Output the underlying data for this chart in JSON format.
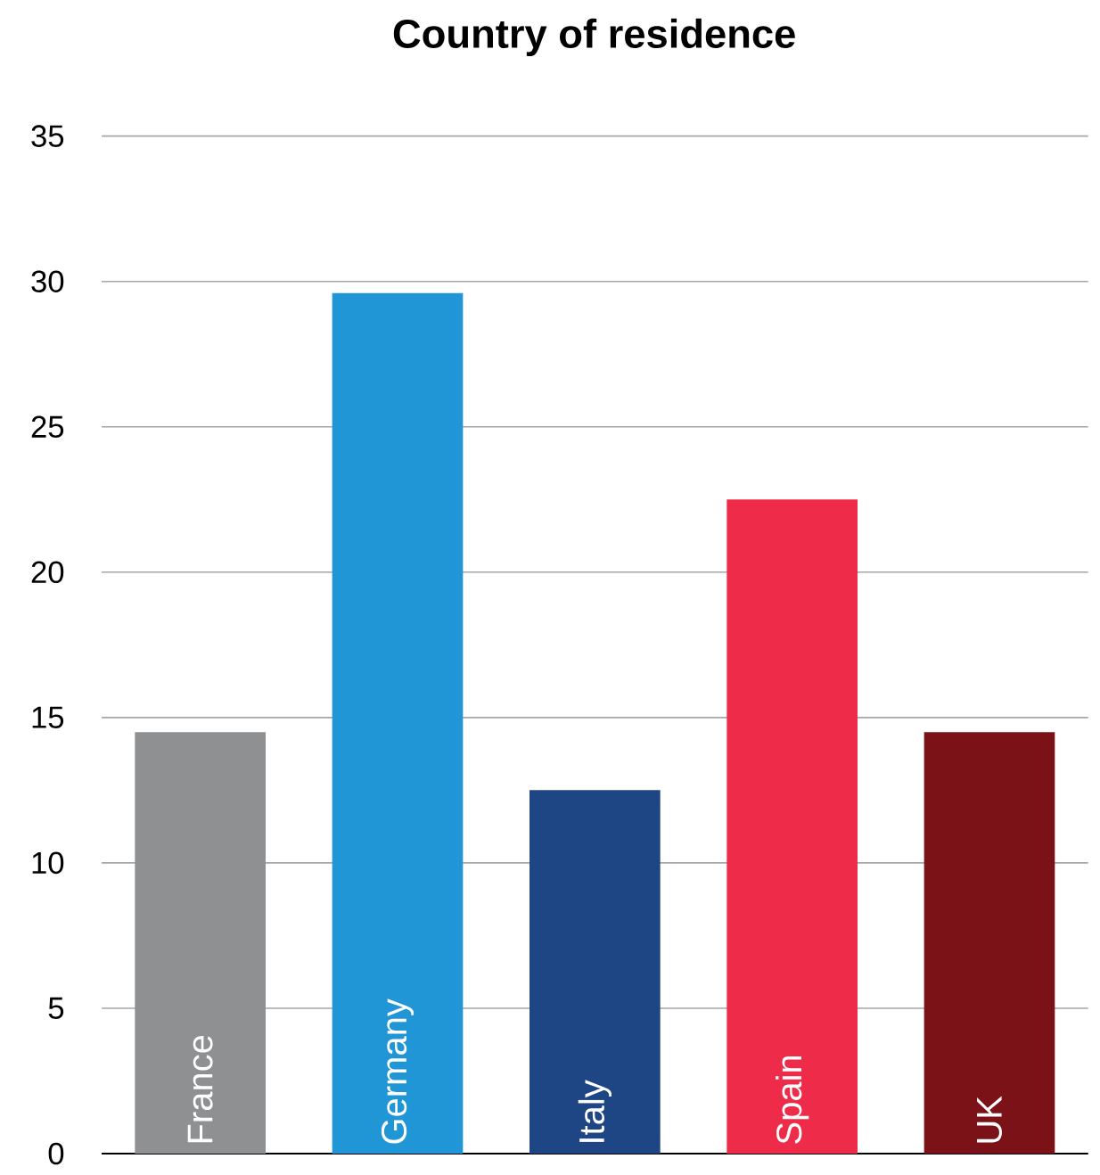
{
  "chart_data": {
    "type": "bar",
    "title": "Country of residence",
    "categories": [
      "France",
      "Germany",
      "Italy",
      "Spain",
      "UK"
    ],
    "values": [
      14.5,
      29.6,
      12.5,
      22.5,
      14.5
    ],
    "colors": [
      "#8e9091",
      "#2196d6",
      "#1e4584",
      "#ee2c4a",
      "#7b1218"
    ],
    "ylim": [
      0,
      35
    ],
    "yticks": [
      0,
      5,
      10,
      15,
      20,
      25,
      30,
      35
    ],
    "grid": "y"
  }
}
